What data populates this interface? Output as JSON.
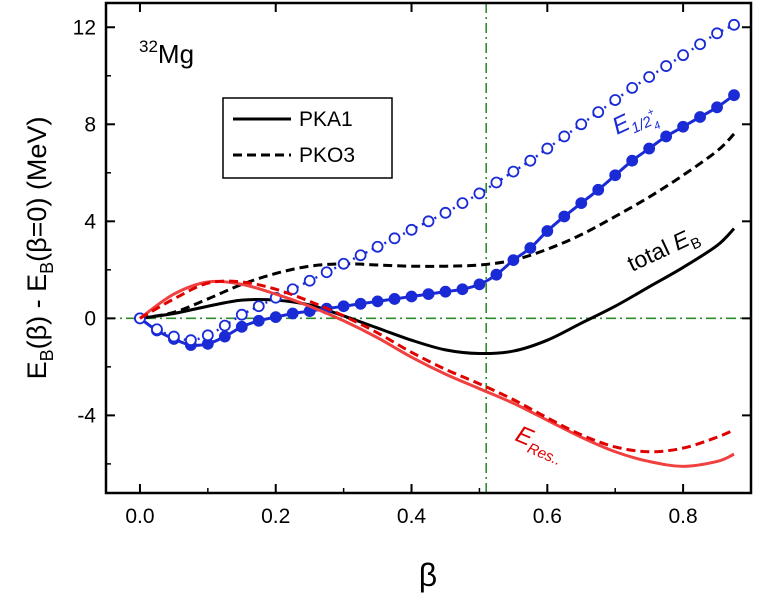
{
  "chart_data": {
    "type": "line",
    "xlabel": "β",
    "ylabel": {
      "main1": "E",
      "sub1": "B",
      "main2": "(β) - E",
      "sub2": "B",
      "main3": "(β=0) (MeV)"
    },
    "xlim": [
      -0.05,
      0.9
    ],
    "ylim": [
      -7.2,
      13
    ],
    "xticks": [
      0.0,
      0.2,
      0.4,
      0.6,
      0.8
    ],
    "xtick_labels": [
      "0.0",
      "0.2",
      "0.4",
      "0.6",
      "0.8"
    ],
    "yticks": [
      -4,
      0,
      4,
      8,
      12
    ],
    "ytick_labels": [
      "-4",
      "0",
      "4",
      "8",
      "12"
    ],
    "nucleus": {
      "mass": "32",
      "symbol": "Mg"
    },
    "legend": {
      "position": "upper-left",
      "entries": [
        {
          "label": "PKA1",
          "style": "solid"
        },
        {
          "label": "PKO3",
          "style": "dashed"
        }
      ]
    },
    "reference_lines": {
      "vertical_x": 0.51,
      "horizontal_y": 0,
      "color": "#2e8b2e"
    },
    "annotations": {
      "total": {
        "text": "total ",
        "main": "E",
        "sub": "B"
      },
      "single_particle": {
        "main": "E",
        "sub": "1/2",
        "sup": "+",
        "subsub": "4"
      },
      "residual": {
        "main": "E",
        "sub": "Res.."
      }
    },
    "series": [
      {
        "name": "total E_B (PKA1)",
        "color": "#000000",
        "style": "solid",
        "x": [
          0,
          0.05,
          0.1,
          0.15,
          0.2,
          0.25,
          0.3,
          0.35,
          0.4,
          0.45,
          0.5,
          0.55,
          0.6,
          0.65,
          0.7,
          0.75,
          0.8,
          0.85,
          0.875
        ],
        "y": [
          0,
          0.2,
          0.5,
          0.75,
          0.75,
          0.55,
          0.1,
          -0.4,
          -0.9,
          -1.3,
          -1.45,
          -1.35,
          -0.9,
          -0.2,
          0.5,
          1.3,
          2.1,
          3.0,
          3.7
        ]
      },
      {
        "name": "total E_B (PKO3)",
        "color": "#000000",
        "style": "dashed",
        "x": [
          0,
          0.05,
          0.1,
          0.15,
          0.2,
          0.25,
          0.3,
          0.35,
          0.4,
          0.45,
          0.5,
          0.55,
          0.6,
          0.65,
          0.7,
          0.75,
          0.8,
          0.85,
          0.875
        ],
        "y": [
          0,
          0.25,
          0.8,
          1.4,
          1.85,
          2.15,
          2.25,
          2.2,
          2.15,
          2.15,
          2.2,
          2.4,
          2.85,
          3.45,
          4.2,
          5.0,
          5.9,
          6.9,
          7.6
        ]
      },
      {
        "name": "E_1/2+4 (PKA1)",
        "color": "#1a2bd6",
        "style": "solid",
        "marker": "filled-circle",
        "x": [
          0,
          0.025,
          0.05,
          0.075,
          0.1,
          0.125,
          0.15,
          0.175,
          0.2,
          0.225,
          0.25,
          0.275,
          0.3,
          0.325,
          0.35,
          0.375,
          0.4,
          0.425,
          0.45,
          0.475,
          0.5,
          0.525,
          0.55,
          0.575,
          0.6,
          0.625,
          0.65,
          0.675,
          0.7,
          0.725,
          0.75,
          0.775,
          0.8,
          0.825,
          0.85,
          0.875
        ],
        "y": [
          0,
          -0.5,
          -0.85,
          -1.1,
          -1.05,
          -0.75,
          -0.35,
          -0.1,
          0.05,
          0.2,
          0.3,
          0.4,
          0.5,
          0.6,
          0.7,
          0.8,
          0.9,
          1.0,
          1.1,
          1.2,
          1.4,
          1.8,
          2.4,
          2.9,
          3.6,
          4.2,
          4.75,
          5.3,
          5.9,
          6.5,
          7.0,
          7.5,
          7.9,
          8.3,
          8.7,
          9.2
        ]
      },
      {
        "name": "E_1/2+4 (PKO3)",
        "color": "#1a2bd6",
        "style": "dashdot",
        "marker": "open-circle",
        "x": [
          0,
          0.025,
          0.05,
          0.075,
          0.1,
          0.125,
          0.15,
          0.175,
          0.2,
          0.225,
          0.25,
          0.275,
          0.3,
          0.325,
          0.35,
          0.375,
          0.4,
          0.425,
          0.45,
          0.475,
          0.5,
          0.525,
          0.55,
          0.575,
          0.6,
          0.625,
          0.65,
          0.675,
          0.7,
          0.725,
          0.75,
          0.775,
          0.8,
          0.825,
          0.85,
          0.875
        ],
        "y": [
          0,
          -0.45,
          -0.75,
          -0.9,
          -0.7,
          -0.3,
          0.15,
          0.5,
          0.85,
          1.2,
          1.55,
          1.9,
          2.25,
          2.6,
          2.95,
          3.3,
          3.65,
          4.0,
          4.35,
          4.75,
          5.15,
          5.6,
          6.05,
          6.5,
          7.0,
          7.5,
          8.0,
          8.5,
          9.0,
          9.5,
          9.95,
          10.4,
          10.85,
          11.3,
          11.75,
          12.1
        ]
      },
      {
        "name": "E_Res (PKA1)",
        "color": "#f04040",
        "style": "solid",
        "x": [
          0,
          0.05,
          0.1,
          0.15,
          0.2,
          0.25,
          0.3,
          0.35,
          0.4,
          0.45,
          0.5,
          0.55,
          0.6,
          0.65,
          0.7,
          0.75,
          0.8,
          0.85,
          0.875
        ],
        "y": [
          0,
          1.0,
          1.5,
          1.4,
          1.0,
          0.5,
          -0.1,
          -0.8,
          -1.6,
          -2.3,
          -2.9,
          -3.5,
          -4.2,
          -4.9,
          -5.5,
          -5.9,
          -6.1,
          -5.9,
          -5.6
        ]
      },
      {
        "name": "E_Res (PKO3)",
        "color": "#e00000",
        "style": "dashed",
        "x": [
          0,
          0.05,
          0.1,
          0.15,
          0.2,
          0.25,
          0.3,
          0.35,
          0.4,
          0.45,
          0.5,
          0.55,
          0.6,
          0.65,
          0.7,
          0.75,
          0.8,
          0.85,
          0.875
        ],
        "y": [
          0,
          0.8,
          1.45,
          1.5,
          1.2,
          0.7,
          0.1,
          -0.6,
          -1.4,
          -2.1,
          -2.7,
          -3.35,
          -4.1,
          -4.8,
          -5.3,
          -5.5,
          -5.35,
          -4.9,
          -4.6
        ]
      }
    ]
  }
}
